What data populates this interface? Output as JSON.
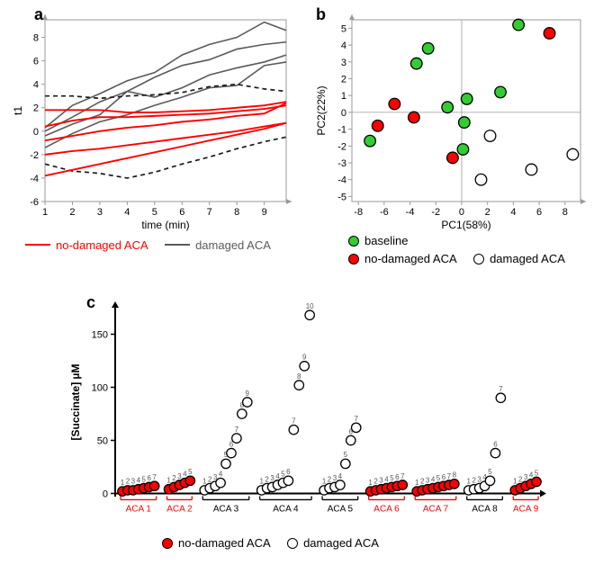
{
  "panel_a": {
    "label": "a",
    "type": "line",
    "x_label": "time (min)",
    "y_label": "t1",
    "x_ticks": [
      1,
      2,
      3,
      4,
      5,
      6,
      7,
      8,
      9
    ],
    "y_ticks": [
      -6,
      -4,
      -2,
      0,
      2,
      4,
      6,
      8
    ],
    "xlim": [
      1,
      9.8
    ],
    "ylim": [
      -6,
      9.5
    ],
    "label_fontsize": 12,
    "tick_fontsize": 11,
    "axis_color": "#9a9a9a",
    "grid": false,
    "legend": {
      "items": [
        {
          "key": "no_damaged",
          "label": "no-damaged ACA",
          "color": "#ff0000",
          "style": "solid"
        },
        {
          "key": "damaged",
          "label": "damaged ACA",
          "color": "#5a5a5a",
          "style": "solid"
        }
      ]
    },
    "series": [
      {
        "group": "damaged",
        "color": "#5a5a5a",
        "width": 1.6,
        "dash": null,
        "points": [
          [
            1,
            0.3
          ],
          [
            2,
            2.2
          ],
          [
            3,
            3.2
          ],
          [
            4,
            4.3
          ],
          [
            5,
            5.0
          ],
          [
            6,
            6.5
          ],
          [
            7,
            7.4
          ],
          [
            8,
            8.0
          ],
          [
            9,
            9.3
          ],
          [
            9.8,
            8.6
          ]
        ]
      },
      {
        "group": "damaged",
        "color": "#5a5a5a",
        "width": 1.6,
        "dash": null,
        "points": [
          [
            1,
            0.0
          ],
          [
            2,
            1.2
          ],
          [
            3,
            2.5
          ],
          [
            4,
            3.4
          ],
          [
            5,
            4.6
          ],
          [
            6,
            5.6
          ],
          [
            7,
            6.1
          ],
          [
            8,
            7.0
          ],
          [
            9,
            7.4
          ],
          [
            9.8,
            7.6
          ]
        ]
      },
      {
        "group": "damaged",
        "color": "#5a5a5a",
        "width": 1.6,
        "dash": null,
        "points": [
          [
            1,
            -0.4
          ],
          [
            2,
            0.6
          ],
          [
            3,
            1.4
          ],
          [
            4,
            3.4
          ],
          [
            5,
            2.9
          ],
          [
            6,
            3.7
          ],
          [
            7,
            4.8
          ],
          [
            8,
            5.4
          ],
          [
            9,
            5.9
          ],
          [
            9.8,
            6.5
          ]
        ]
      },
      {
        "group": "damaged",
        "color": "#5a5a5a",
        "width": 1.6,
        "dash": null,
        "points": [
          [
            1,
            -1.4
          ],
          [
            2,
            -0.2
          ],
          [
            3,
            0.8
          ],
          [
            4,
            1.4
          ],
          [
            5,
            2.2
          ],
          [
            6,
            2.9
          ],
          [
            7,
            3.7
          ],
          [
            8,
            3.9
          ],
          [
            9,
            5.6
          ],
          [
            9.8,
            5.9
          ]
        ]
      },
      {
        "group": "damaged_band",
        "color": "#1a1a1a",
        "width": 1.7,
        "dash": "5,4",
        "points": [
          [
            1,
            3.0
          ],
          [
            2,
            3.0
          ],
          [
            3,
            2.8
          ],
          [
            4,
            3.0
          ],
          [
            5,
            3.1
          ],
          [
            6,
            3.3
          ],
          [
            7,
            3.8
          ],
          [
            8,
            4.0
          ],
          [
            9,
            3.6
          ],
          [
            9.8,
            3.4
          ]
        ]
      },
      {
        "group": "damaged_band",
        "color": "#1a1a1a",
        "width": 1.7,
        "dash": "5,4",
        "points": [
          [
            1,
            -2.8
          ],
          [
            2,
            -3.4
          ],
          [
            3,
            -3.6
          ],
          [
            4,
            -4.0
          ],
          [
            5,
            -3.5
          ],
          [
            6,
            -2.8
          ],
          [
            7,
            -2.2
          ],
          [
            8,
            -1.5
          ],
          [
            9,
            -0.9
          ],
          [
            9.8,
            -0.5
          ]
        ]
      },
      {
        "group": "no_damaged",
        "color": "#ff0000",
        "width": 1.9,
        "dash": null,
        "points": [
          [
            1,
            1.8
          ],
          [
            2,
            1.8
          ],
          [
            3,
            1.8
          ],
          [
            4,
            1.6
          ],
          [
            5,
            1.6
          ],
          [
            6,
            1.7
          ],
          [
            7,
            1.8
          ],
          [
            8,
            2.0
          ],
          [
            9,
            2.2
          ],
          [
            9.8,
            2.5
          ]
        ]
      },
      {
        "group": "no_damaged",
        "color": "#ff0000",
        "width": 1.9,
        "dash": null,
        "points": [
          [
            1,
            0.4
          ],
          [
            2,
            0.9
          ],
          [
            3,
            1.2
          ],
          [
            4,
            1.2
          ],
          [
            5,
            1.3
          ],
          [
            6,
            1.4
          ],
          [
            7,
            1.5
          ],
          [
            8,
            1.7
          ],
          [
            9,
            1.9
          ],
          [
            9.8,
            2.2
          ]
        ]
      },
      {
        "group": "no_damaged",
        "color": "#ff0000",
        "width": 1.9,
        "dash": null,
        "points": [
          [
            1,
            -0.8
          ],
          [
            2,
            -0.4
          ],
          [
            3,
            0.0
          ],
          [
            4,
            0.3
          ],
          [
            5,
            0.5
          ],
          [
            6,
            0.8
          ],
          [
            7,
            1.0
          ],
          [
            8,
            1.3
          ],
          [
            9,
            1.5
          ],
          [
            9.8,
            2.4
          ]
        ]
      },
      {
        "group": "no_damaged",
        "color": "#ff0000",
        "width": 1.9,
        "dash": null,
        "points": [
          [
            1,
            -2.0
          ],
          [
            2,
            -1.7
          ],
          [
            3,
            -1.5
          ],
          [
            4,
            -1.2
          ],
          [
            5,
            -0.9
          ],
          [
            6,
            -0.6
          ],
          [
            7,
            -0.3
          ],
          [
            8,
            0.0
          ],
          [
            9,
            0.4
          ],
          [
            9.8,
            0.7
          ]
        ]
      },
      {
        "group": "no_damaged",
        "color": "#ff0000",
        "width": 1.9,
        "dash": null,
        "points": [
          [
            1,
            -3.8
          ],
          [
            2,
            -3.3
          ],
          [
            3,
            -2.8
          ],
          [
            4,
            -2.3
          ],
          [
            5,
            -1.8
          ],
          [
            6,
            -1.3
          ],
          [
            7,
            -0.8
          ],
          [
            8,
            -0.3
          ],
          [
            9,
            0.2
          ],
          [
            9.8,
            0.7
          ]
        ]
      }
    ]
  },
  "panel_b": {
    "label": "b",
    "type": "scatter",
    "x_label": "PC1(58%)",
    "y_label": "PC2(22%)",
    "x_ticks": [
      -8,
      -6,
      -4,
      -2,
      0,
      2,
      4,
      6,
      8
    ],
    "y_ticks": [
      -5,
      -4,
      -3,
      -2,
      -1,
      0,
      1,
      2,
      3,
      4,
      5
    ],
    "xlim": [
      -8.5,
      9.2
    ],
    "ylim": [
      -5.3,
      5.5
    ],
    "axis_color": "#9a9a9a",
    "marker_radius": 6.3,
    "marker_stroke": "#000000",
    "marker_stroke_width": 1.3,
    "legend": [
      {
        "key": "baseline",
        "label": "baseline",
        "fill": "#33cc33"
      },
      {
        "key": "no_damaged",
        "label": "no-damaged ACA",
        "fill": "#ff0000"
      },
      {
        "key": "damaged",
        "label": "damaged ACA",
        "fill": "#ffffff"
      }
    ],
    "points": [
      {
        "g": "baseline",
        "x": -7.1,
        "y": -1.7
      },
      {
        "g": "baseline",
        "x": -3.5,
        "y": 2.9
      },
      {
        "g": "baseline",
        "x": -2.6,
        "y": 3.8
      },
      {
        "g": "baseline",
        "x": -1.1,
        "y": 0.3
      },
      {
        "g": "baseline",
        "x": 0.4,
        "y": 0.8
      },
      {
        "g": "baseline",
        "x": 0.2,
        "y": -0.6
      },
      {
        "g": "baseline",
        "x": 0.1,
        "y": -2.2
      },
      {
        "g": "baseline",
        "x": 3.0,
        "y": 1.2
      },
      {
        "g": "baseline",
        "x": 4.4,
        "y": 5.2
      },
      {
        "g": "no_damaged",
        "x": -6.5,
        "y": -0.8
      },
      {
        "g": "no_damaged",
        "x": -5.2,
        "y": 0.5
      },
      {
        "g": "no_damaged",
        "x": -3.7,
        "y": -0.3
      },
      {
        "g": "no_damaged",
        "x": -0.7,
        "y": -2.7
      },
      {
        "g": "no_damaged",
        "x": 6.8,
        "y": 4.7
      },
      {
        "g": "damaged",
        "x": 2.2,
        "y": -1.4
      },
      {
        "g": "damaged",
        "x": 1.5,
        "y": -4.0
      },
      {
        "g": "damaged",
        "x": 5.4,
        "y": -3.4
      },
      {
        "g": "damaged",
        "x": 8.6,
        "y": -2.5
      }
    ]
  },
  "panel_c": {
    "label": "c",
    "type": "scatter-series",
    "y_label": "[Succinate] µM",
    "y_ticks": [
      0,
      50,
      100,
      150
    ],
    "ylim": [
      -3,
      175
    ],
    "axis_color": "#000000",
    "group_bracket_color": "#000000",
    "marker_radius": 5.2,
    "marker_stroke_width": 1.3,
    "fills": {
      "no_damaged": "#ff0000",
      "damaged": "#ffffff"
    },
    "stroke": "#000000",
    "groups": [
      {
        "id": "ACA 1",
        "type": "no_damaged",
        "values": [
          2,
          3,
          3,
          4,
          5,
          6,
          7
        ]
      },
      {
        "id": "ACA 2",
        "type": "no_damaged",
        "values": [
          4,
          6,
          8,
          10,
          12
        ]
      },
      {
        "id": "ACA 3",
        "type": "damaged",
        "values": [
          3,
          5,
          7,
          10,
          28,
          38,
          52,
          75,
          86
        ]
      },
      {
        "id": "ACA 4",
        "type": "damaged",
        "values": [
          3,
          5,
          6,
          8,
          10,
          12,
          60,
          102,
          120,
          168
        ]
      },
      {
        "id": "ACA 5",
        "type": "damaged",
        "values": [
          3,
          5,
          6,
          8,
          28,
          50,
          62
        ]
      },
      {
        "id": "ACA 6",
        "type": "no_damaged",
        "values": [
          2,
          3,
          4,
          5,
          6,
          7,
          8
        ]
      },
      {
        "id": "ACA 7",
        "type": "no_damaged",
        "values": [
          2,
          3,
          4,
          5,
          6,
          7,
          8,
          9
        ]
      },
      {
        "id": "ACA 8",
        "type": "damaged",
        "values": [
          3,
          4,
          5,
          7,
          12,
          38,
          90
        ]
      },
      {
        "id": "ACA 9",
        "type": "no_damaged",
        "values": [
          3,
          5,
          7,
          9,
          11
        ]
      }
    ],
    "point_label_fontsize": 8,
    "group_label_fontsize": 10,
    "legend": [
      {
        "key": "no_damaged",
        "label": "no-damaged ACA",
        "fill": "#ff0000"
      },
      {
        "key": "damaged",
        "label": "damaged ACA",
        "fill": "#ffffff"
      }
    ]
  }
}
